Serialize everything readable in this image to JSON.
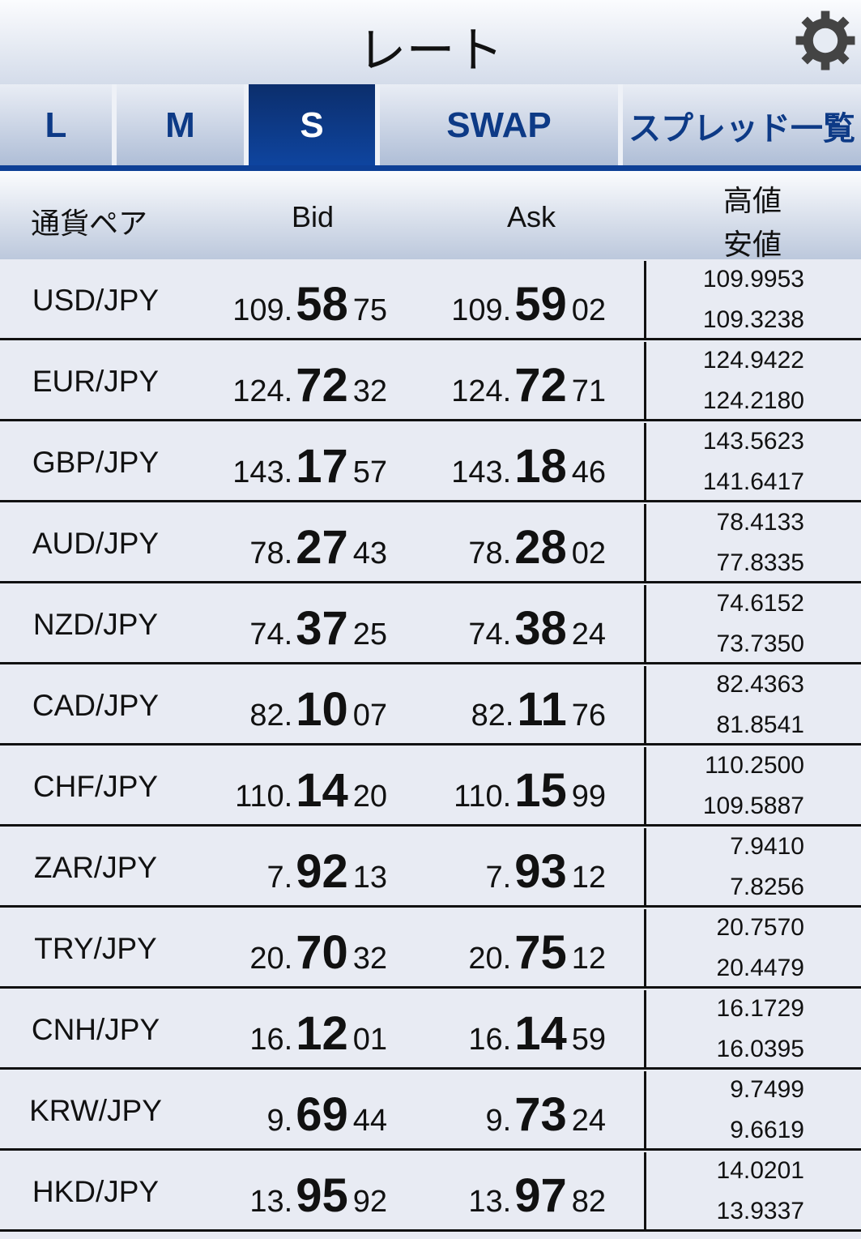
{
  "title": "レート",
  "icons": {
    "settings": "gear-icon"
  },
  "tabs": [
    {
      "label": "L"
    },
    {
      "label": "M"
    },
    {
      "label": "S",
      "active": true
    },
    {
      "label": "SWAP"
    },
    {
      "label": "スプレッド一覧"
    }
  ],
  "header": {
    "pair": "通貨ペア",
    "bid": "Bid",
    "ask": "Ask",
    "high": "高値",
    "low": "安値"
  },
  "colors": {
    "accent": "#0d3f96",
    "tab_text": "#0d3a86"
  },
  "rows": [
    {
      "pair": "USD/JPY",
      "bid": [
        "109.",
        "58",
        "75"
      ],
      "ask": [
        "109.",
        "59",
        "02"
      ],
      "high": "109.9953",
      "low": "109.3238"
    },
    {
      "pair": "EUR/JPY",
      "bid": [
        "124.",
        "72",
        "32"
      ],
      "ask": [
        "124.",
        "72",
        "71"
      ],
      "high": "124.9422",
      "low": "124.2180"
    },
    {
      "pair": "GBP/JPY",
      "bid": [
        "143.",
        "17",
        "57"
      ],
      "ask": [
        "143.",
        "18",
        "46"
      ],
      "high": "143.5623",
      "low": "141.6417"
    },
    {
      "pair": "AUD/JPY",
      "bid": [
        "78.",
        "27",
        "43"
      ],
      "ask": [
        "78.",
        "28",
        "02"
      ],
      "high": "78.4133",
      "low": "77.8335"
    },
    {
      "pair": "NZD/JPY",
      "bid": [
        "74.",
        "37",
        "25"
      ],
      "ask": [
        "74.",
        "38",
        "24"
      ],
      "high": "74.6152",
      "low": "73.7350"
    },
    {
      "pair": "CAD/JPY",
      "bid": [
        "82.",
        "10",
        "07"
      ],
      "ask": [
        "82.",
        "11",
        "76"
      ],
      "high": "82.4363",
      "low": "81.8541"
    },
    {
      "pair": "CHF/JPY",
      "bid": [
        "110.",
        "14",
        "20"
      ],
      "ask": [
        "110.",
        "15",
        "99"
      ],
      "high": "110.2500",
      "low": "109.5887"
    },
    {
      "pair": "ZAR/JPY",
      "bid": [
        "7.",
        "92",
        "13"
      ],
      "ask": [
        "7.",
        "93",
        "12"
      ],
      "high": "7.9410",
      "low": "7.8256"
    },
    {
      "pair": "TRY/JPY",
      "bid": [
        "20.",
        "70",
        "32"
      ],
      "ask": [
        "20.",
        "75",
        "12"
      ],
      "high": "20.7570",
      "low": "20.4479"
    },
    {
      "pair": "CNH/JPY",
      "bid": [
        "16.",
        "12",
        "01"
      ],
      "ask": [
        "16.",
        "14",
        "59"
      ],
      "high": "16.1729",
      "low": "16.0395"
    },
    {
      "pair": "KRW/JPY",
      "bid": [
        "9.",
        "69",
        "44"
      ],
      "ask": [
        "9.",
        "73",
        "24"
      ],
      "high": "9.7499",
      "low": "9.6619"
    },
    {
      "pair": "HKD/JPY",
      "bid": [
        "13.",
        "95",
        "92"
      ],
      "ask": [
        "13.",
        "97",
        "82"
      ],
      "high": "14.0201",
      "low": "13.9337"
    }
  ]
}
